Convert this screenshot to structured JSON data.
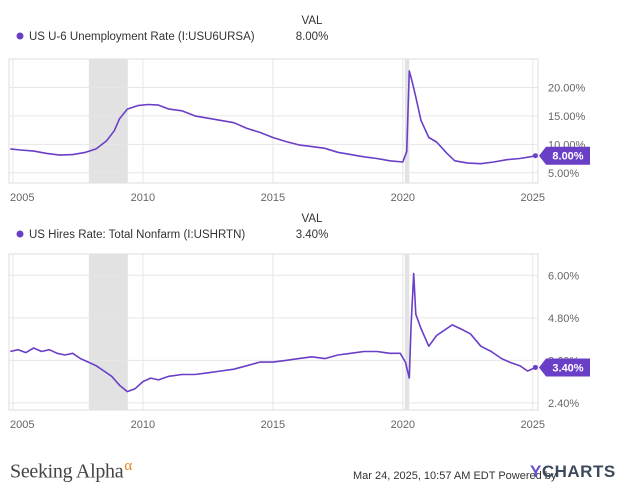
{
  "header_label": "VAL",
  "footer": {
    "brand": "Seeking Alpha",
    "brand_mark": "α",
    "timestamp": "Mar 24, 2025, 10:57 AM EDT",
    "powered_by": "Powered by",
    "provider_mark": "Y",
    "provider": "CHARTS"
  },
  "colors": {
    "series": "#6a3fc8",
    "recession": "#e2e2e2",
    "grid": "#e6e6e6"
  },
  "chart_data": [
    {
      "type": "line",
      "legend": "US U-6 Unemployment Rate (I:USU6URSA)",
      "value_label": "8.00%",
      "last_value": 8.0,
      "xlim": [
        2004.85,
        2025.2
      ],
      "ylim": [
        3.2,
        25.0
      ],
      "x_ticks": [
        2005,
        2010,
        2015,
        2020,
        2025
      ],
      "x_tick_labels": [
        "2005",
        "2010",
        "2015",
        "2020",
        "2025"
      ],
      "y_ticks": [
        5,
        10,
        15,
        20
      ],
      "y_tick_labels": [
        "5.00%",
        "10.00%",
        "15.00%",
        "20.00%"
      ],
      "recessions": [
        [
          2007.92,
          2009.42
        ],
        [
          2020.08,
          2020.25
        ]
      ],
      "points": [
        [
          2004.9,
          9.2
        ],
        [
          2005.3,
          9.0
        ],
        [
          2005.8,
          8.8
        ],
        [
          2006.3,
          8.4
        ],
        [
          2006.8,
          8.1
        ],
        [
          2007.3,
          8.2
        ],
        [
          2007.8,
          8.6
        ],
        [
          2008.2,
          9.2
        ],
        [
          2008.6,
          10.6
        ],
        [
          2008.9,
          12.4
        ],
        [
          2009.1,
          14.5
        ],
        [
          2009.4,
          16.2
        ],
        [
          2009.8,
          16.8
        ],
        [
          2010.2,
          17.0
        ],
        [
          2010.6,
          16.9
        ],
        [
          2011.0,
          16.2
        ],
        [
          2011.5,
          15.9
        ],
        [
          2012.0,
          15.0
        ],
        [
          2012.5,
          14.6
        ],
        [
          2013.0,
          14.2
        ],
        [
          2013.5,
          13.8
        ],
        [
          2014.0,
          12.8
        ],
        [
          2014.5,
          12.1
        ],
        [
          2015.0,
          11.2
        ],
        [
          2015.5,
          10.5
        ],
        [
          2016.0,
          9.9
        ],
        [
          2016.5,
          9.6
        ],
        [
          2017.0,
          9.3
        ],
        [
          2017.5,
          8.6
        ],
        [
          2018.0,
          8.2
        ],
        [
          2018.5,
          7.8
        ],
        [
          2019.0,
          7.5
        ],
        [
          2019.5,
          7.1
        ],
        [
          2020.0,
          6.9
        ],
        [
          2020.15,
          8.7
        ],
        [
          2020.25,
          22.9
        ],
        [
          2020.35,
          21.2
        ],
        [
          2020.5,
          18.3
        ],
        [
          2020.7,
          14.2
        ],
        [
          2021.0,
          11.2
        ],
        [
          2021.3,
          10.4
        ],
        [
          2021.7,
          8.4
        ],
        [
          2022.0,
          7.1
        ],
        [
          2022.5,
          6.7
        ],
        [
          2023.0,
          6.6
        ],
        [
          2023.5,
          6.9
        ],
        [
          2024.0,
          7.3
        ],
        [
          2024.5,
          7.5
        ],
        [
          2024.9,
          7.8
        ],
        [
          2025.1,
          8.0
        ]
      ]
    },
    {
      "type": "line",
      "legend": "US Hires Rate: Total Nonfarm (I:USHRTN)",
      "value_label": "3.40%",
      "last_value": 3.4,
      "xlim": [
        2004.85,
        2025.2
      ],
      "ylim": [
        2.2,
        6.6
      ],
      "x_ticks": [
        2005,
        2010,
        2015,
        2020,
        2025
      ],
      "x_tick_labels": [
        "2005",
        "2010",
        "2015",
        "2020",
        "2025"
      ],
      "y_ticks": [
        2.4,
        3.6,
        4.8,
        6.0
      ],
      "y_tick_labels": [
        "2.40%",
        "3.60%",
        "4.80%",
        "6.00%"
      ],
      "recessions": [
        [
          2007.92,
          2009.42
        ],
        [
          2020.08,
          2020.25
        ]
      ],
      "points": [
        [
          2004.9,
          3.85
        ],
        [
          2005.2,
          3.9
        ],
        [
          2005.5,
          3.82
        ],
        [
          2005.8,
          3.95
        ],
        [
          2006.1,
          3.85
        ],
        [
          2006.4,
          3.9
        ],
        [
          2006.7,
          3.8
        ],
        [
          2007.0,
          3.75
        ],
        [
          2007.3,
          3.8
        ],
        [
          2007.6,
          3.65
        ],
        [
          2007.9,
          3.55
        ],
        [
          2008.2,
          3.45
        ],
        [
          2008.5,
          3.3
        ],
        [
          2008.8,
          3.15
        ],
        [
          2009.1,
          2.9
        ],
        [
          2009.4,
          2.72
        ],
        [
          2009.7,
          2.8
        ],
        [
          2010.0,
          3.0
        ],
        [
          2010.3,
          3.1
        ],
        [
          2010.6,
          3.05
        ],
        [
          2011.0,
          3.15
        ],
        [
          2011.5,
          3.2
        ],
        [
          2012.0,
          3.2
        ],
        [
          2012.5,
          3.25
        ],
        [
          2013.0,
          3.3
        ],
        [
          2013.5,
          3.35
        ],
        [
          2014.0,
          3.45
        ],
        [
          2014.5,
          3.55
        ],
        [
          2015.0,
          3.55
        ],
        [
          2015.5,
          3.6
        ],
        [
          2016.0,
          3.65
        ],
        [
          2016.5,
          3.7
        ],
        [
          2017.0,
          3.65
        ],
        [
          2017.5,
          3.75
        ],
        [
          2018.0,
          3.8
        ],
        [
          2018.5,
          3.85
        ],
        [
          2019.0,
          3.85
        ],
        [
          2019.5,
          3.8
        ],
        [
          2019.9,
          3.8
        ],
        [
          2020.1,
          3.55
        ],
        [
          2020.25,
          3.1
        ],
        [
          2020.32,
          4.6
        ],
        [
          2020.42,
          6.05
        ],
        [
          2020.5,
          4.9
        ],
        [
          2020.7,
          4.5
        ],
        [
          2021.0,
          4.0
        ],
        [
          2021.3,
          4.3
        ],
        [
          2021.6,
          4.45
        ],
        [
          2021.9,
          4.6
        ],
        [
          2022.2,
          4.5
        ],
        [
          2022.6,
          4.35
        ],
        [
          2023.0,
          4.0
        ],
        [
          2023.4,
          3.85
        ],
        [
          2023.8,
          3.65
        ],
        [
          2024.1,
          3.55
        ],
        [
          2024.5,
          3.45
        ],
        [
          2024.8,
          3.3
        ],
        [
          2025.1,
          3.4
        ]
      ]
    }
  ]
}
